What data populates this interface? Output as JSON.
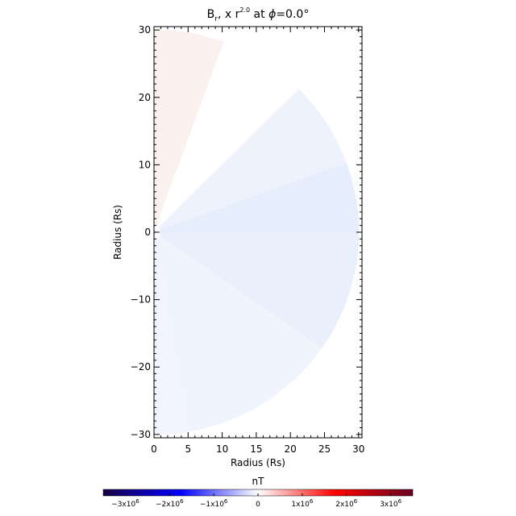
{
  "chart_data": {
    "type": "heatmap",
    "title": {
      "main": "B",
      "mid": ", x r",
      "exp": "2.0",
      "pre_phi": " at ",
      "phi": "ϕ",
      "post": "=0.0°"
    },
    "xlabel": "Radius (Rs)",
    "ylabel": "Radius (Rs)",
    "xlim": [
      0,
      30.5
    ],
    "ylim": [
      -30.5,
      30.5
    ],
    "xticks": [
      0,
      5,
      10,
      15,
      20,
      25,
      30
    ],
    "xtick_labels": [
      "0",
      "5",
      "10",
      "15",
      "20",
      "25",
      "30"
    ],
    "yticks": [
      30,
      20,
      10,
      0,
      -10,
      -20,
      -30
    ],
    "ytick_labels": [
      "30",
      "20",
      "10",
      "0",
      "−10",
      "−20",
      "−30"
    ],
    "sectors": [
      {
        "r_min": 1,
        "r_max": 30,
        "angle_start": 70,
        "angle_end": 90,
        "value": 0.12,
        "color": "#fbf1ee"
      },
      {
        "r_min": 1,
        "r_max": 30,
        "angle_start": 45,
        "angle_end": 70,
        "value": 0.0,
        "color": "#ffffff"
      },
      {
        "r_min": 1,
        "r_max": 30,
        "angle_start": 20,
        "angle_end": 45,
        "value": -0.12,
        "color": "#eef2fc"
      },
      {
        "r_min": 1,
        "r_max": 30,
        "angle_start": 0,
        "angle_end": 20,
        "value": -0.25,
        "color": "#e6edfb"
      },
      {
        "r_min": 1,
        "r_max": 30,
        "angle_start": -35,
        "angle_end": 0,
        "value": -0.22,
        "color": "#e9effb"
      },
      {
        "r_min": 1,
        "r_max": 30,
        "angle_start": -80,
        "angle_end": -35,
        "value": -0.12,
        "color": "#f0f4fc"
      },
      {
        "r_min": 1,
        "r_max": 30,
        "angle_start": -90,
        "angle_end": -80,
        "value": -0.08,
        "color": "#f2f5fd"
      }
    ],
    "colorbar": {
      "label": "nT",
      "range": [
        -3500000.0,
        3500000.0
      ],
      "ticks": [
        {
          "value": -3000000,
          "mant": "−3x10",
          "exp": "6"
        },
        {
          "value": -2000000,
          "mant": "−2x10",
          "exp": "6"
        },
        {
          "value": -1000000,
          "mant": "−1x10",
          "exp": "6"
        },
        {
          "value": 0,
          "mant": "0",
          "exp": ""
        },
        {
          "value": 1000000,
          "mant": "1x10",
          "exp": "6"
        },
        {
          "value": 2000000,
          "mant": "2x10",
          "exp": "6"
        },
        {
          "value": 3000000,
          "mant": "3x10",
          "exp": "6"
        }
      ],
      "colormap": [
        "#1a0044",
        "#0000ff",
        "#ffffff",
        "#ff0000",
        "#660022"
      ]
    }
  }
}
